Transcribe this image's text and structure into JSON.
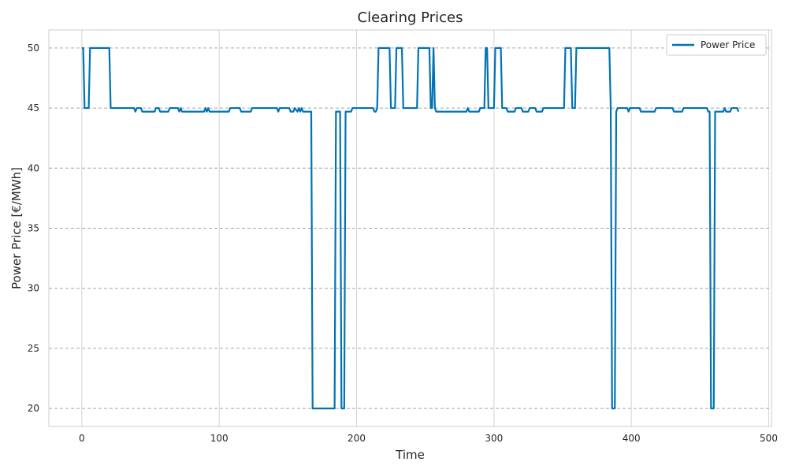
{
  "chart_data": {
    "type": "line",
    "title": "Clearing Prices",
    "xlabel": "Time",
    "ylabel": "Power Price [€/MWh]",
    "xlim": [
      -24,
      502
    ],
    "ylim": [
      18.5,
      51.5
    ],
    "xticks": [
      0,
      100,
      200,
      300,
      400,
      500
    ],
    "yticks": [
      20,
      25,
      30,
      35,
      40,
      45,
      50
    ],
    "grid": {
      "vertical": "solid light gray",
      "horizontal": "dashed gray"
    },
    "legend": {
      "position": "top-right"
    },
    "series": [
      {
        "name": "Power Price",
        "color": "#0173b2",
        "points": [
          [
            0,
            50
          ],
          [
            1,
            50
          ],
          [
            2,
            45
          ],
          [
            5,
            45
          ],
          [
            6,
            50
          ],
          [
            20,
            50
          ],
          [
            21,
            45
          ],
          [
            38,
            45
          ],
          [
            39,
            44.7
          ],
          [
            40,
            45
          ],
          [
            43,
            45
          ],
          [
            44,
            44.7
          ],
          [
            53,
            44.7
          ],
          [
            54,
            45
          ],
          [
            56,
            45
          ],
          [
            57,
            44.7
          ],
          [
            63,
            44.7
          ],
          [
            64,
            45
          ],
          [
            70,
            45
          ],
          [
            71,
            44.7
          ],
          [
            72,
            45
          ],
          [
            73,
            44.7
          ],
          [
            89,
            44.7
          ],
          [
            90,
            45
          ],
          [
            91,
            44.7
          ],
          [
            92,
            45
          ],
          [
            93,
            44.7
          ],
          [
            107,
            44.7
          ],
          [
            108,
            45
          ],
          [
            115,
            45
          ],
          [
            116,
            44.7
          ],
          [
            123,
            44.7
          ],
          [
            124,
            45
          ],
          [
            142,
            45
          ],
          [
            143,
            44.7
          ],
          [
            144,
            45
          ],
          [
            151,
            45
          ],
          [
            152,
            44.7
          ],
          [
            154,
            44.7
          ],
          [
            155,
            45
          ],
          [
            157,
            44.7
          ],
          [
            158,
            45
          ],
          [
            159,
            44.7
          ],
          [
            160,
            45
          ],
          [
            161,
            44.7
          ],
          [
            167,
            44.7
          ],
          [
            168,
            20
          ],
          [
            184,
            20
          ],
          [
            185,
            44.7
          ],
          [
            188,
            44.7
          ],
          [
            189,
            20
          ],
          [
            191,
            20
          ],
          [
            192,
            44.7
          ],
          [
            196,
            44.7
          ],
          [
            197,
            45
          ],
          [
            212,
            45
          ],
          [
            213,
            44.7
          ],
          [
            214,
            44.7
          ],
          [
            215,
            45
          ],
          [
            216,
            50
          ],
          [
            224,
            50
          ],
          [
            225,
            45
          ],
          [
            228,
            45
          ],
          [
            229,
            50
          ],
          [
            233,
            50
          ],
          [
            234,
            45
          ],
          [
            244,
            45
          ],
          [
            245,
            50
          ],
          [
            253,
            50
          ],
          [
            254,
            45
          ],
          [
            255,
            45
          ],
          [
            256,
            50
          ],
          [
            257,
            45
          ],
          [
            258,
            44.7
          ],
          [
            280,
            44.7
          ],
          [
            281,
            45
          ],
          [
            282,
            44.7
          ],
          [
            289,
            44.7
          ],
          [
            290,
            45
          ],
          [
            293,
            45
          ],
          [
            294,
            50
          ],
          [
            295,
            50
          ],
          [
            296,
            45
          ],
          [
            300,
            45
          ],
          [
            301,
            50
          ],
          [
            305,
            50
          ],
          [
            306,
            45
          ],
          [
            309,
            45
          ],
          [
            310,
            44.7
          ],
          [
            315,
            44.7
          ],
          [
            316,
            45
          ],
          [
            320,
            45
          ],
          [
            321,
            44.7
          ],
          [
            325,
            44.7
          ],
          [
            326,
            45
          ],
          [
            330,
            45
          ],
          [
            331,
            44.7
          ],
          [
            335,
            44.7
          ],
          [
            336,
            45
          ],
          [
            351,
            45
          ],
          [
            352,
            50
          ],
          [
            356,
            50
          ],
          [
            357,
            45
          ],
          [
            359,
            45
          ],
          [
            360,
            50
          ],
          [
            384,
            50
          ],
          [
            385,
            45
          ],
          [
            386,
            20
          ],
          [
            388,
            20
          ],
          [
            389,
            44.7
          ],
          [
            390,
            45
          ],
          [
            397,
            45
          ],
          [
            398,
            44.7
          ],
          [
            399,
            45
          ],
          [
            406,
            45
          ],
          [
            407,
            44.7
          ],
          [
            417,
            44.7
          ],
          [
            418,
            45
          ],
          [
            430,
            45
          ],
          [
            431,
            44.7
          ],
          [
            437,
            44.7
          ],
          [
            438,
            45
          ],
          [
            455,
            45
          ],
          [
            456,
            44.7
          ],
          [
            457,
            44.7
          ],
          [
            458,
            20
          ],
          [
            460,
            20
          ],
          [
            461,
            44.7
          ],
          [
            467,
            44.7
          ],
          [
            468,
            45
          ],
          [
            469,
            44.7
          ],
          [
            472,
            44.7
          ],
          [
            473,
            45
          ],
          [
            477,
            45
          ],
          [
            478,
            44.7
          ]
        ]
      }
    ]
  }
}
